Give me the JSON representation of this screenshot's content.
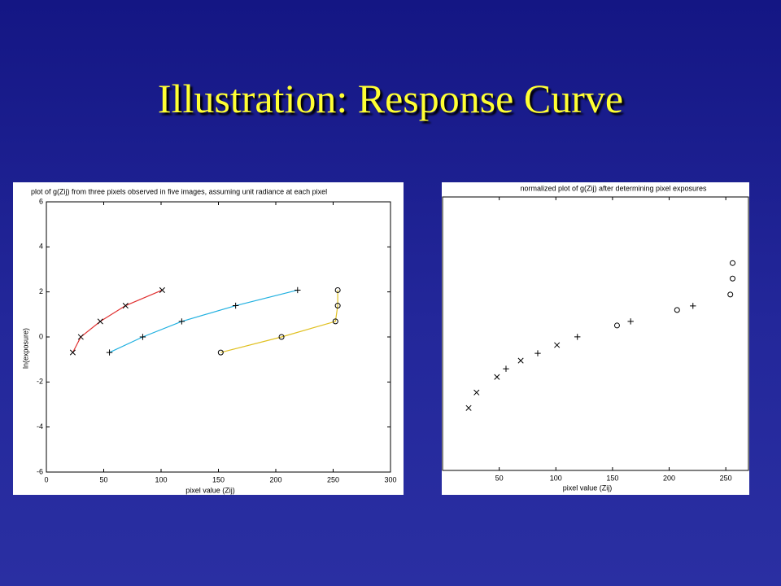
{
  "title": "Illustration: Response Curve",
  "chart_data": [
    {
      "type": "line",
      "title": "plot of g(Zij) from three pixels observed in five images, assuming unit radiance at each pixel",
      "x_label": "pixel value (Zij)",
      "y_label": "ln(exposure)",
      "xlim": [
        0,
        300
      ],
      "xticks": [
        0,
        50,
        100,
        150,
        200,
        250,
        300
      ],
      "ylim": [
        -6,
        6
      ],
      "yticks": [
        -6,
        -4,
        -2,
        0,
        2,
        4,
        6
      ],
      "series": [
        {
          "color": "#e03030",
          "marker": "x",
          "x": [
            23,
            30,
            47,
            69,
            101
          ],
          "values": [
            -0.69,
            0,
            0.69,
            1.39,
            2.08
          ]
        },
        {
          "color": "#20b0e0",
          "marker": "+",
          "x": [
            55,
            84,
            118,
            165,
            219
          ],
          "values": [
            -0.69,
            0,
            0.69,
            1.39,
            2.08
          ]
        },
        {
          "color": "#e0c020",
          "marker": "o",
          "x": [
            152,
            205,
            252,
            254,
            254
          ],
          "values": [
            -0.69,
            0,
            0.69,
            1.39,
            2.08
          ]
        }
      ]
    },
    {
      "type": "scatter",
      "title": "normalized plot of g(Zij) after determining pixel exposures",
      "x_label": "pixel value (Zij)",
      "xlim": [
        0,
        270
      ],
      "xticks": [
        50,
        100,
        150,
        200,
        250
      ],
      "ylim": [
        -3,
        3
      ],
      "series": [
        {
          "color": "#000000",
          "marker": "x",
          "x": [
            23,
            30,
            48,
            69,
            101
          ],
          "values": [
            -1.63,
            -1.29,
            -0.95,
            -0.59,
            -0.25
          ]
        },
        {
          "color": "#000000",
          "marker": "+",
          "x": [
            56,
            84,
            119,
            166,
            221
          ],
          "values": [
            -0.77,
            -0.43,
            -0.07,
            0.27,
            0.61
          ]
        },
        {
          "color": "#000000",
          "marker": "o",
          "x": [
            154,
            207,
            254,
            256,
            256
          ],
          "values": [
            0.18,
            0.52,
            0.86,
            1.21,
            1.55
          ]
        }
      ]
    }
  ]
}
